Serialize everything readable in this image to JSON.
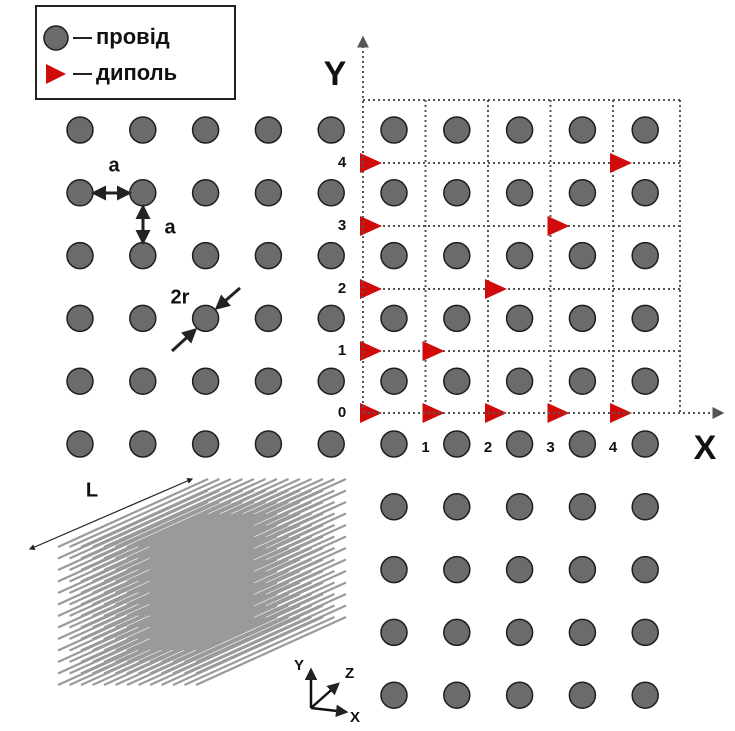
{
  "legend": {
    "items": [
      {
        "label": "провід"
      },
      {
        "label": "диполь"
      }
    ]
  },
  "lattice": {
    "period_label_horizontal": "a",
    "period_label_vertical": "a",
    "diameter_label": "2r"
  },
  "axes": {
    "y_label": "Y",
    "x_label": "X",
    "y_ticks": [
      "0",
      "1",
      "2",
      "3",
      "4"
    ],
    "x_ticks": [
      "1",
      "2",
      "3",
      "4"
    ]
  },
  "rods": {
    "length_label": "L",
    "axis_labels": [
      "Y",
      "Z",
      "X"
    ]
  }
}
